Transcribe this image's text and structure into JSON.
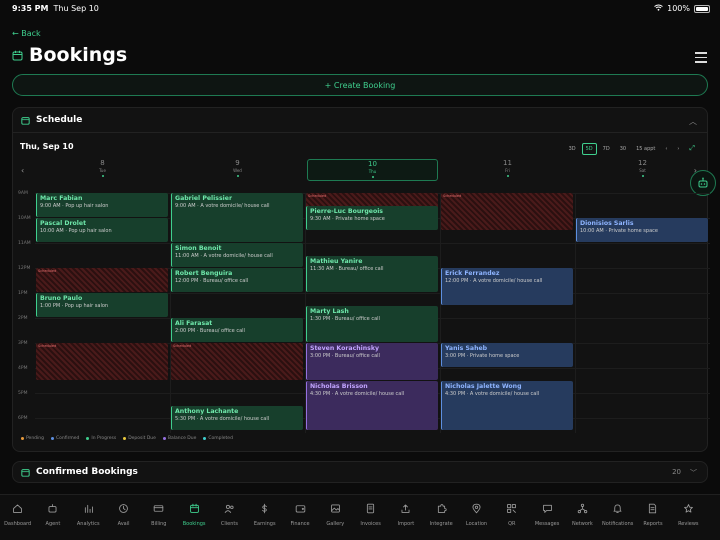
{
  "status": {
    "time": "9:35 PM",
    "date": "Thu Sep 10",
    "battery": "100%"
  },
  "nav": {
    "back": "← Back",
    "title": "Bookings"
  },
  "create_label": "+ Create Booking",
  "schedule": {
    "title": "Schedule",
    "current_date": "Thu, Sep 10",
    "views": [
      "3D",
      "5D",
      "7D",
      "30",
      "15 appt"
    ],
    "selected_view": "5D",
    "days": [
      {
        "num": "8",
        "dow": "Tue"
      },
      {
        "num": "9",
        "dow": "Wed"
      },
      {
        "num": "10",
        "dow": "Thu"
      },
      {
        "num": "11",
        "dow": "Fri"
      },
      {
        "num": "12",
        "dow": "Sat"
      }
    ],
    "today_index": 2,
    "times": [
      "9AM",
      "10AM",
      "11AM",
      "12PM",
      "1PM",
      "2PM",
      "3PM",
      "4PM",
      "5PM",
      "6PM"
    ],
    "events": [
      {
        "day": 0,
        "start": 9.0,
        "end": 10.0,
        "name": "Marc Fabian",
        "detail": "9:00 AM · Pop up hair salon",
        "color": "green"
      },
      {
        "day": 0,
        "start": 10.0,
        "end": 11.0,
        "name": "Pascal Drolet",
        "detail": "10:00 AM · Pop up hair salon",
        "color": "green"
      },
      {
        "day": 0,
        "start": 13.0,
        "end": 14.0,
        "name": "Bruno Paulo",
        "detail": "1:00 PM · Pop up hair salon",
        "color": "green"
      },
      {
        "day": 1,
        "start": 9.0,
        "end": 11.0,
        "name": "Gabriel Pelissier",
        "detail": "9:00 AM · A votre domicile/ house call",
        "color": "green"
      },
      {
        "day": 1,
        "start": 11.0,
        "end": 12.0,
        "name": "Simon Benoit",
        "detail": "11:00 AM · A votre domicile/ house call",
        "color": "green"
      },
      {
        "day": 1,
        "start": 12.0,
        "end": 13.0,
        "name": "Robert Benguira",
        "detail": "12:00 PM · Bureau/ office call",
        "color": "green"
      },
      {
        "day": 1,
        "start": 14.0,
        "end": 15.0,
        "name": "Ali Farasat",
        "detail": "2:00 PM · Bureau/ office call",
        "color": "green"
      },
      {
        "day": 1,
        "start": 17.5,
        "end": 18.5,
        "name": "Anthony Lachante",
        "detail": "5:30 PM · A votre domicile/ house call",
        "color": "green"
      },
      {
        "day": 2,
        "start": 9.5,
        "end": 10.5,
        "name": "Pierre-Luc Bourgeois",
        "detail": "9:30 AM · Private home space",
        "color": "green"
      },
      {
        "day": 2,
        "start": 11.5,
        "end": 13.0,
        "name": "Mathieu Yanire",
        "detail": "11:30 AM · Bureau/ office call",
        "color": "green"
      },
      {
        "day": 2,
        "start": 13.5,
        "end": 15.0,
        "name": "Marty Lash",
        "detail": "1:30 PM · Bureau/ office call",
        "color": "green"
      },
      {
        "day": 2,
        "start": 15.0,
        "end": 16.5,
        "name": "Steven Korachinsky",
        "detail": "3:00 PM · Bureau/ office call",
        "color": "purple"
      },
      {
        "day": 2,
        "start": 16.5,
        "end": 18.5,
        "name": "Nicholas Brisson",
        "detail": "4:30 PM · A votre domicile/ house call",
        "color": "purple"
      },
      {
        "day": 3,
        "start": 12.0,
        "end": 13.5,
        "name": "Erick Ferrandez",
        "detail": "12:00 PM · A votre domicile/ house call",
        "color": "blue"
      },
      {
        "day": 3,
        "start": 15.0,
        "end": 16.0,
        "name": "Yanis Saheb",
        "detail": "3:00 PM · Private home space",
        "color": "blue"
      },
      {
        "day": 3,
        "start": 16.5,
        "end": 18.5,
        "name": "Nicholas Jalette Wong",
        "detail": "4:30 PM · A votre domicile/ house call",
        "color": "blue"
      },
      {
        "day": 4,
        "start": 10.0,
        "end": 11.0,
        "name": "Dionisios Sarlis",
        "detail": "10:00 AM · Private home space",
        "color": "blue"
      }
    ],
    "blocks": [
      {
        "day": 0,
        "start": 12.0,
        "end": 13.0,
        "label": "Scheduled"
      },
      {
        "day": 0,
        "start": 15.0,
        "end": 16.5,
        "label": "Scheduled"
      },
      {
        "day": 1,
        "start": 15.0,
        "end": 16.5,
        "label": "Scheduled"
      },
      {
        "day": 2,
        "start": 9.0,
        "end": 10.0,
        "label": "Scheduled"
      },
      {
        "day": 2,
        "start": 18.0,
        "end": 18.5,
        "label": "Scheduled"
      },
      {
        "day": 3,
        "start": 9.0,
        "end": 10.5,
        "label": "Scheduled"
      }
    ],
    "legend": [
      {
        "label": "Pending",
        "color": "#e89a3c"
      },
      {
        "label": "Confirmed",
        "color": "#5d8fe0"
      },
      {
        "label": "In Progress",
        "color": "#3fcf8e"
      },
      {
        "label": "Deposit Due",
        "color": "#e8c83c"
      },
      {
        "label": "Balance Due",
        "color": "#9570e0"
      },
      {
        "label": "Completed",
        "color": "#3fcfcf"
      }
    ]
  },
  "confirmed": {
    "title": "Confirmed Bookings",
    "count": "20"
  },
  "tabs": [
    {
      "label": "Dashboard",
      "icon": "home-icon"
    },
    {
      "label": "Agent",
      "icon": "agent-icon"
    },
    {
      "label": "Analytics",
      "icon": "chart-icon"
    },
    {
      "label": "Avail",
      "icon": "clock-icon"
    },
    {
      "label": "Billing",
      "icon": "card-icon"
    },
    {
      "label": "Bookings",
      "icon": "calendar-icon"
    },
    {
      "label": "Clients",
      "icon": "users-icon"
    },
    {
      "label": "Earnings",
      "icon": "dollar-icon"
    },
    {
      "label": "Finance",
      "icon": "wallet-icon"
    },
    {
      "label": "Gallery",
      "icon": "image-icon"
    },
    {
      "label": "Invoices",
      "icon": "invoice-icon"
    },
    {
      "label": "Import",
      "icon": "upload-icon"
    },
    {
      "label": "Integrate",
      "icon": "puzzle-icon"
    },
    {
      "label": "Location",
      "icon": "pin-icon"
    },
    {
      "label": "QR",
      "icon": "qr-icon"
    },
    {
      "label": "Messages",
      "icon": "message-icon"
    },
    {
      "label": "Network",
      "icon": "network-icon"
    },
    {
      "label": "Notifications",
      "icon": "bell-icon"
    },
    {
      "label": "Reports",
      "icon": "report-icon"
    },
    {
      "label": "Reviews",
      "icon": "star-icon"
    }
  ],
  "active_tab": "Bookings",
  "accent": "#3fcf8e"
}
